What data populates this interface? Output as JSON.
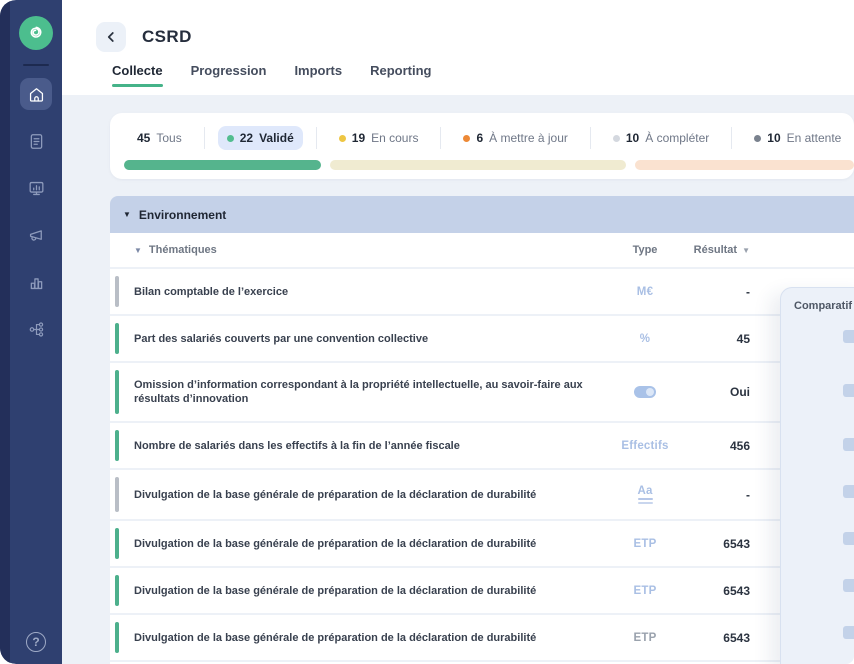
{
  "header": {
    "title": "CSRD"
  },
  "tabs": [
    {
      "key": "collecte",
      "label": "Collecte",
      "active": true
    },
    {
      "key": "progression",
      "label": "Progression",
      "active": false
    },
    {
      "key": "imports",
      "label": "Imports",
      "active": false
    },
    {
      "key": "reporting",
      "label": "Reporting",
      "active": false
    }
  ],
  "filters": [
    {
      "key": "tous",
      "count": "45",
      "label": "Tous",
      "dot": "",
      "selected": false
    },
    {
      "key": "valide",
      "count": "22",
      "label": "Validé",
      "dot": "#52BD8F",
      "selected": true
    },
    {
      "key": "en-cours",
      "count": "19",
      "label": "En cours",
      "dot": "#EEC643",
      "selected": false
    },
    {
      "key": "a-mettre-a-jour",
      "count": "6",
      "label": "À mettre à jour",
      "dot": "#ED8936",
      "selected": false
    },
    {
      "key": "a-completer",
      "count": "10",
      "label": "À compléter",
      "dot": "#D4D8DF",
      "selected": false
    },
    {
      "key": "en-attente",
      "count": "10",
      "label": "En attente",
      "dot": "#7A828E",
      "selected": false
    }
  ],
  "progress": {
    "segments": [
      {
        "status": "valide",
        "color": "#55B48D",
        "width_pct": 27
      },
      {
        "status": "en-cours",
        "color": "#F0EBD1",
        "width_pct": 40.5
      },
      {
        "status": "a-mettre-a-jour",
        "color": "#FAE2D0",
        "width_pct": null
      }
    ]
  },
  "section": {
    "title": "Environnement"
  },
  "table": {
    "headers": {
      "thematiques": "Thématiques",
      "type": "Type",
      "resultat": "Résultat"
    },
    "rows": [
      {
        "label": "Bilan comptable de l’exercice",
        "status": "gray",
        "type_kind": "text",
        "type": "M€",
        "type_color": "blue",
        "result": "-"
      },
      {
        "label": "Part des salariés couverts par une convention collective",
        "status": "green",
        "type_kind": "text",
        "type": "%",
        "type_color": "blue",
        "result": "45"
      },
      {
        "label": "Omission d’information correspondant à la propriété intellectuelle, au savoir-faire aux résultats d’innovation",
        "status": "green",
        "type_kind": "toggle",
        "type": "",
        "type_color": "blue",
        "result": "Oui"
      },
      {
        "label": "Nombre de salariés dans les effectifs à la fin de l’année fiscale",
        "status": "green",
        "type_kind": "text",
        "type": "Effectifs",
        "type_color": "blue",
        "result": "456"
      },
      {
        "label": "Divulgation de la base générale de préparation de la déclaration de durabilité",
        "status": "gray",
        "type_kind": "textformat",
        "type": "Aa",
        "type_color": "blue",
        "result": "-"
      },
      {
        "label": "Divulgation de la base générale de préparation de la déclaration de durabilité",
        "status": "green",
        "type_kind": "text",
        "type": "ETP",
        "type_color": "blue",
        "result": "6543"
      },
      {
        "label": "Divulgation de la base générale de préparation de la déclaration de durabilité",
        "status": "green",
        "type_kind": "text",
        "type": "ETP",
        "type_color": "blue",
        "result": "6543"
      },
      {
        "label": "Divulgation de la base générale de préparation de la déclaration de durabilité",
        "status": "green",
        "type_kind": "text",
        "type": "ETP",
        "type_color": "gray",
        "result": "6543"
      }
    ],
    "partial_row": {
      "status": "green"
    }
  },
  "comparatif": {
    "title": "Comparatif",
    "placeholder_rows": 7
  },
  "sidebar": {
    "items": [
      {
        "name": "home",
        "active": true
      },
      {
        "name": "documents",
        "active": false
      },
      {
        "name": "dashboard",
        "active": false
      },
      {
        "name": "announcements",
        "active": false
      },
      {
        "name": "analytics",
        "active": false
      },
      {
        "name": "organization",
        "active": false
      }
    ],
    "help_glyph": "?"
  }
}
